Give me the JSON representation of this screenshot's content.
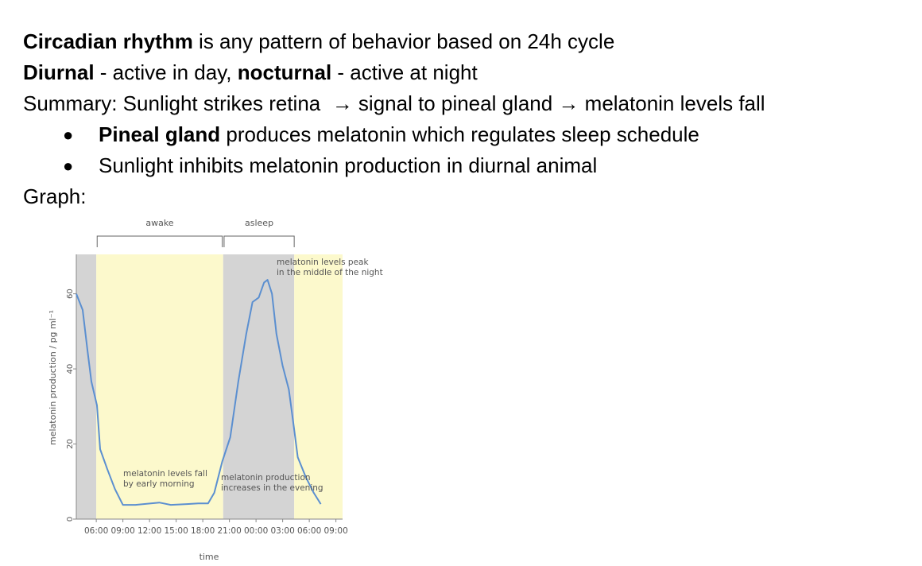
{
  "document": {
    "lines": [
      {
        "bullet": false,
        "runs": [
          {
            "text": "Circadian rhythm",
            "bold": true
          },
          {
            "text": " is any pattern of behavior based on 24h cycle",
            "bold": false
          }
        ]
      },
      {
        "bullet": false,
        "runs": [
          {
            "text": "Diurnal",
            "bold": true
          },
          {
            "text": " - active in day, ",
            "bold": false
          },
          {
            "text": "nocturnal",
            "bold": true
          },
          {
            "text": " - active at night",
            "bold": false
          }
        ]
      },
      {
        "bullet": false,
        "runs": [
          {
            "text": "Summary: Sunlight strikes retina  → signal to pineal gland → melatonin levels fall",
            "bold": false
          }
        ]
      },
      {
        "bullet": true,
        "runs": [
          {
            "text": "Pineal gland",
            "bold": true
          },
          {
            "text": " produces melatonin which regulates sleep schedule",
            "bold": false
          }
        ]
      },
      {
        "bullet": true,
        "runs": [
          {
            "text": "Sunlight inhibits melatonin production in diurnal animal",
            "bold": false
          }
        ]
      },
      {
        "bullet": false,
        "runs": [
          {
            "text": "Graph:",
            "bold": false
          }
        ]
      }
    ]
  },
  "chart_data": {
    "type": "line",
    "x_label": "time",
    "y_label": "melatonin production / pg ml⁻¹",
    "x": [
      3.75,
      4.47,
      5.0,
      5.45,
      6.08,
      6.44,
      7.24,
      8.1,
      9.0,
      10.4,
      13.1,
      14.4,
      16.2,
      17.5,
      18.6,
      19.3,
      20.2,
      21.1,
      22.0,
      22.9,
      23.6,
      24.3,
      24.9,
      25.3,
      25.8,
      26.3,
      27.0,
      27.7,
      28.3,
      28.7,
      29.6,
      30.5,
      31.3
    ],
    "values": [
      60,
      55.7,
      45,
      36.6,
      30.3,
      18.6,
      13.3,
      8,
      3.8,
      3.8,
      4.4,
      3.8,
      4.0,
      4.2,
      4.2,
      7,
      15.4,
      21.8,
      36.6,
      49.3,
      57.8,
      59,
      63,
      63.7,
      60,
      49.3,
      40.8,
      34.5,
      23.9,
      16.5,
      11.2,
      7,
      4
    ],
    "color": "#5b8fd0",
    "xlim": [
      3.75,
      33.75
    ],
    "ylim": [
      0,
      70.5
    ],
    "yticks": [
      0,
      20,
      40,
      60
    ],
    "xticks": [
      {
        "value": 6,
        "label": "06:00"
      },
      {
        "value": 9,
        "label": "09:00"
      },
      {
        "value": 12,
        "label": "12:00"
      },
      {
        "value": 15,
        "label": "15:00"
      },
      {
        "value": 18,
        "label": "18:00"
      },
      {
        "value": 21,
        "label": "21:00"
      },
      {
        "value": 24,
        "label": "00:00"
      },
      {
        "value": 27,
        "label": "03:00"
      },
      {
        "value": 30,
        "label": "06:00"
      },
      {
        "value": 33,
        "label": "09:00"
      }
    ],
    "background": [
      {
        "from": 3.75,
        "to": 6,
        "color": "#d4d4d4"
      },
      {
        "from": 6,
        "to": 20.3,
        "color": "#fcf9cc"
      },
      {
        "from": 20.3,
        "to": 28.3,
        "color": "#d4d4d4"
      },
      {
        "from": 28.3,
        "to": 33.75,
        "color": "#fcf9cc"
      }
    ],
    "periods": [
      {
        "label": "awake",
        "from": 6.1,
        "to": 20.2
      },
      {
        "label": "asleep",
        "from": 20.4,
        "to": 28.3
      }
    ],
    "annotations": [
      {
        "lines": [
          "melatonin levels peak",
          "in the middle of the night"
        ]
      },
      {
        "lines": [
          "melatonin levels fall",
          "by early morning"
        ]
      },
      {
        "lines": [
          "melatonin production",
          "increases in the evening"
        ]
      }
    ]
  }
}
